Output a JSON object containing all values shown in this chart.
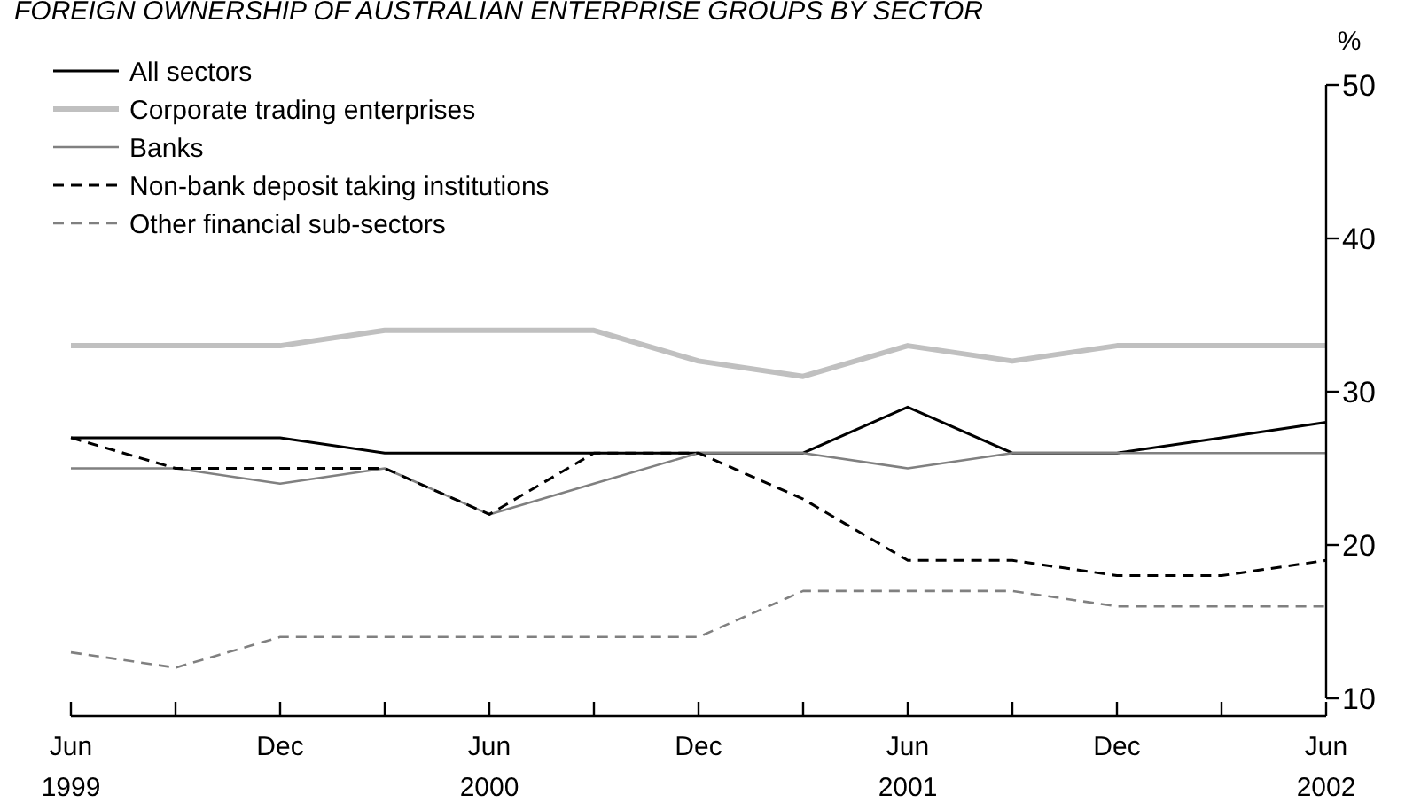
{
  "chart_data": {
    "type": "line",
    "title": "FOREIGN OWNERSHIP OF AUSTRALIAN ENTERPRISE GROUPS BY SECTOR",
    "ylabel": "%",
    "categories": [
      "Jun 1999",
      null,
      "Dec",
      null,
      "Jun 2000",
      null,
      "Dec",
      null,
      "Jun 2001",
      null,
      "Dec",
      null,
      "Jun 2002"
    ],
    "ylim": [
      10,
      50
    ],
    "yticks": [
      10,
      20,
      30,
      40,
      50
    ],
    "grid": false,
    "legend": "top left",
    "marker": "none",
    "series": [
      {
        "name": "All sectors",
        "color": "#000000",
        "line_style": "solid",
        "values": [
          27,
          27,
          27,
          26,
          26,
          26,
          26,
          26,
          29,
          26,
          26,
          27,
          28
        ]
      },
      {
        "name": "Corporate trading enterprises",
        "color": "#c0c0c0",
        "line_style": "solid",
        "values": [
          33,
          33,
          33,
          34,
          34,
          34,
          32,
          31,
          33,
          32,
          33,
          33,
          33
        ]
      },
      {
        "name": "Banks",
        "color": "#808080",
        "line_style": "solid",
        "values": [
          25,
          25,
          24,
          25,
          22,
          24,
          26,
          26,
          25,
          26,
          26,
          26,
          26
        ]
      },
      {
        "name": "Non-bank deposit taking institutions",
        "color": "#000000",
        "line_style": "dashed",
        "values": [
          27,
          25,
          25,
          25,
          22,
          26,
          26,
          23,
          19,
          19,
          18,
          18,
          19
        ]
      },
      {
        "name": "Other financial sub-sectors",
        "color": "#808080",
        "line_style": "dashed",
        "values": [
          13,
          12,
          14,
          14,
          14,
          14,
          14,
          17,
          17,
          17,
          16,
          16,
          16
        ]
      }
    ]
  }
}
